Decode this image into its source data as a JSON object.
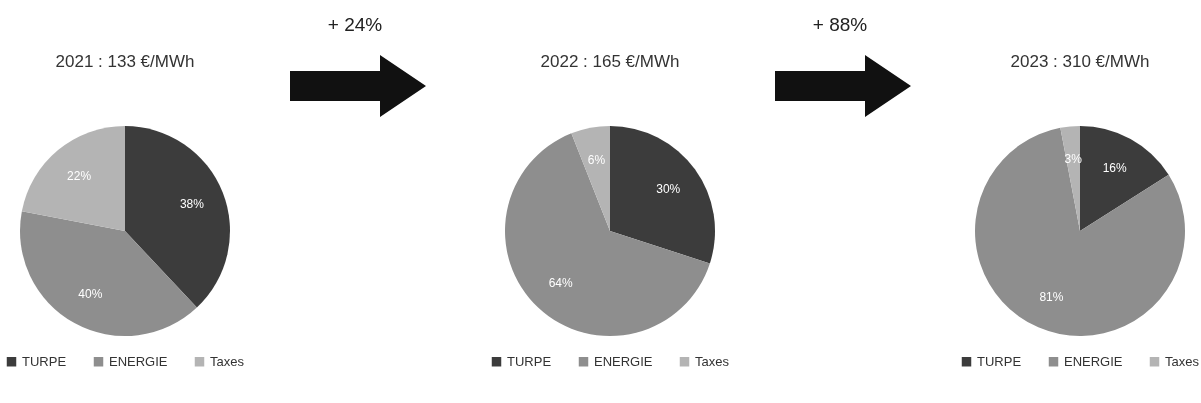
{
  "chart_data": [
    {
      "type": "pie",
      "title": "2021 : 133 €/MWh",
      "categories": [
        "TURPE",
        "ENERGIE",
        "Taxes"
      ],
      "values": [
        38,
        40,
        22
      ],
      "colors": [
        "#3c3c3c",
        "#8e8e8e",
        "#b4b4b4"
      ],
      "value_labels": [
        "38%",
        "40%",
        "22%"
      ],
      "legend": "bottom",
      "annotations": [
        "+ 24%"
      ]
    },
    {
      "type": "pie",
      "title": "2022 : 165 €/MWh",
      "categories": [
        "TURPE",
        "ENERGIE",
        "Taxes"
      ],
      "values": [
        30,
        64,
        6
      ],
      "colors": [
        "#3c3c3c",
        "#8e8e8e",
        "#b4b4b4"
      ],
      "value_labels": [
        "30%",
        "64%",
        "6%"
      ],
      "legend": "bottom",
      "annotations": [
        "+ 88%"
      ]
    },
    {
      "type": "pie",
      "title": "2023 : 310 €/MWh",
      "categories": [
        "TURPE",
        "ENERGIE",
        "Taxes"
      ],
      "values": [
        16,
        81,
        3
      ],
      "colors": [
        "#3c3c3c",
        "#8e8e8e",
        "#b4b4b4"
      ],
      "value_labels": [
        "16%",
        "81%",
        "3%"
      ],
      "legend": "bottom"
    }
  ]
}
